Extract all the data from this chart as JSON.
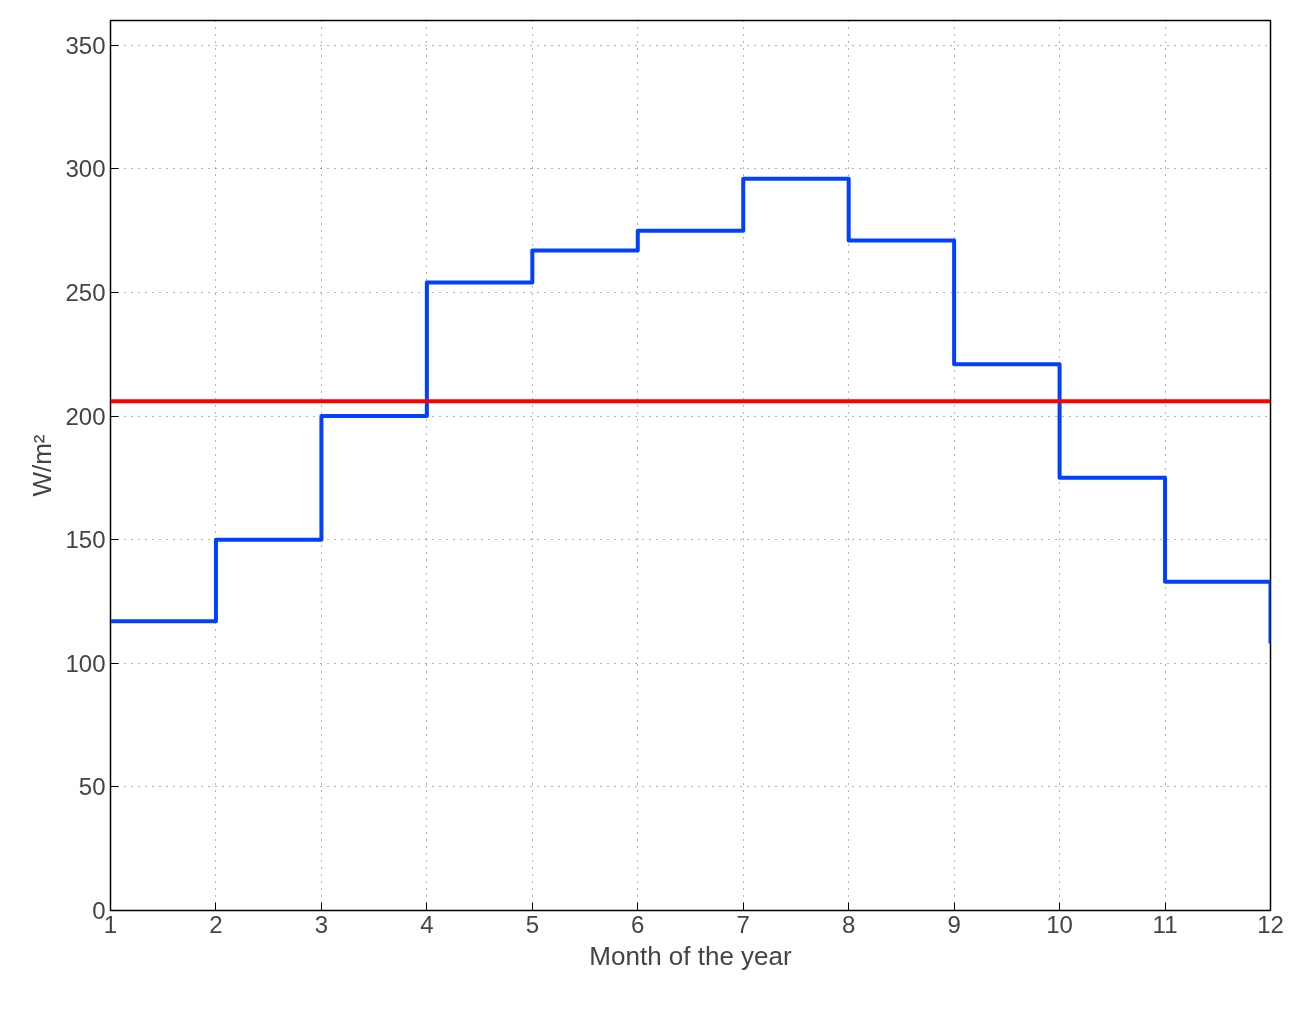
{
  "chart_data": {
    "type": "step",
    "xlabel": "Month of the year",
    "ylabel": "W/m²",
    "x": [
      1,
      2,
      3,
      4,
      5,
      6,
      7,
      8,
      9,
      10,
      11,
      12
    ],
    "series": [
      {
        "color": "#0040ff",
        "values": [
          117,
          150,
          200,
          254,
          267,
          275,
          296,
          271,
          221,
          175,
          133,
          108
        ]
      }
    ],
    "ref_lines": [
      {
        "axis": "y",
        "value": 206,
        "color": "#ff0000"
      }
    ],
    "xlim": [
      1,
      12
    ],
    "ylim": [
      0,
      360
    ],
    "xticks": [
      1,
      2,
      3,
      4,
      5,
      6,
      7,
      8,
      9,
      10,
      11,
      12
    ],
    "yticks": [
      0,
      50,
      100,
      150,
      200,
      250,
      300,
      350
    ],
    "grid": true,
    "line_style": "solid"
  }
}
